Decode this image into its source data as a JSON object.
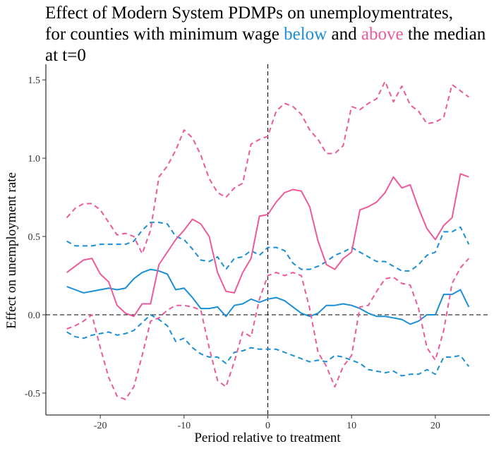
{
  "title": {
    "line1": "Effect of Modern System PDMPs on unemploymentrates,",
    "line2_prefix": "for counties with minimum wage ",
    "line2_below": "below",
    "line2_and": " and ",
    "line2_above": "above",
    "line2_suffix": " the median",
    "line3": "at t=0"
  },
  "colors": {
    "below": "#1b8fd6",
    "above": "#ec5a9b"
  },
  "chart_data": {
    "type": "line",
    "xlabel": "Period relative to treatment",
    "ylabel": "Effect on unemployment rate",
    "xlim": [
      -26.5,
      26.5
    ],
    "ylim": [
      -0.64,
      1.6
    ],
    "xticks": [
      -20,
      -10,
      0,
      10,
      20
    ],
    "xtick_labels": [
      "-20",
      "-10",
      "0",
      "10",
      "20"
    ],
    "yticks": [
      -0.5,
      0.0,
      0.5,
      1.0,
      1.5
    ],
    "ytick_labels": [
      "-0.5",
      "0.0",
      "0.5",
      "1.0",
      "1.5"
    ],
    "reference_lines": {
      "vertical_x": 0,
      "horizontal_y": 0
    },
    "grid": false,
    "legend": "none",
    "x": [
      -24,
      -23,
      -22,
      -21,
      -20,
      -19,
      -18,
      -17,
      -16,
      -15,
      -14,
      -13,
      -12,
      -11,
      -10,
      -9,
      -8,
      -7,
      -6,
      -5,
      -4,
      -3,
      -2,
      -1,
      0,
      1,
      2,
      3,
      4,
      5,
      6,
      7,
      8,
      9,
      10,
      11,
      12,
      13,
      14,
      15,
      16,
      17,
      18,
      19,
      20,
      21,
      22,
      23,
      24
    ],
    "series": [
      {
        "group": "below",
        "style": "solid",
        "values": [
          0.18,
          0.16,
          0.14,
          0.15,
          0.16,
          0.17,
          0.16,
          0.17,
          0.23,
          0.27,
          0.29,
          0.28,
          0.26,
          0.16,
          0.17,
          0.11,
          0.04,
          0.04,
          0.05,
          -0.01,
          0.06,
          0.07,
          0.1,
          0.08,
          0.1,
          0.11,
          0.09,
          0.05,
          0.01,
          -0.01,
          0.01,
          0.06,
          0.06,
          0.07,
          0.06,
          0.04,
          0.01,
          -0.01,
          -0.01,
          -0.02,
          -0.03,
          -0.06,
          -0.04,
          0.0,
          0.0,
          0.13,
          0.13,
          0.16,
          0.05
        ]
      },
      {
        "group": "below",
        "style": "dashed",
        "values": [
          0.47,
          0.44,
          0.44,
          0.44,
          0.45,
          0.45,
          0.45,
          0.45,
          0.47,
          0.54,
          0.59,
          0.59,
          0.58,
          0.5,
          0.48,
          0.42,
          0.35,
          0.34,
          0.37,
          0.29,
          0.36,
          0.37,
          0.41,
          0.38,
          0.43,
          0.43,
          0.41,
          0.33,
          0.29,
          0.29,
          0.31,
          0.34,
          0.38,
          0.4,
          0.43,
          0.4,
          0.37,
          0.34,
          0.34,
          0.31,
          0.28,
          0.28,
          0.32,
          0.38,
          0.4,
          0.53,
          0.53,
          0.56,
          0.45
        ]
      },
      {
        "group": "below",
        "style": "dashed",
        "values": [
          -0.11,
          -0.14,
          -0.15,
          -0.13,
          -0.12,
          -0.11,
          -0.13,
          -0.12,
          -0.1,
          -0.05,
          0.0,
          -0.03,
          -0.07,
          -0.17,
          -0.15,
          -0.21,
          -0.25,
          -0.27,
          -0.27,
          -0.31,
          -0.24,
          -0.23,
          -0.21,
          -0.22,
          -0.22,
          -0.22,
          -0.24,
          -0.26,
          -0.28,
          -0.3,
          -0.29,
          -0.3,
          -0.26,
          -0.27,
          -0.29,
          -0.31,
          -0.35,
          -0.36,
          -0.37,
          -0.36,
          -0.39,
          -0.38,
          -0.38,
          -0.35,
          -0.38,
          -0.27,
          -0.27,
          -0.26,
          -0.33
        ]
      },
      {
        "group": "above",
        "style": "solid",
        "values": [
          0.27,
          0.31,
          0.35,
          0.36,
          0.26,
          0.21,
          0.06,
          0.01,
          -0.01,
          0.07,
          0.07,
          0.32,
          0.4,
          0.48,
          0.54,
          0.61,
          0.58,
          0.5,
          0.27,
          0.15,
          0.14,
          0.27,
          0.36,
          0.63,
          0.64,
          0.72,
          0.78,
          0.8,
          0.79,
          0.69,
          0.47,
          0.32,
          0.29,
          0.36,
          0.4,
          0.67,
          0.69,
          0.72,
          0.78,
          0.88,
          0.81,
          0.83,
          0.68,
          0.55,
          0.48,
          0.57,
          0.62,
          0.9,
          0.88
        ]
      },
      {
        "group": "above",
        "style": "dashed",
        "values": [
          0.62,
          0.68,
          0.71,
          0.71,
          0.67,
          0.59,
          0.51,
          0.52,
          0.5,
          0.39,
          0.54,
          0.88,
          0.95,
          1.05,
          1.18,
          1.13,
          1.02,
          0.87,
          0.78,
          0.75,
          0.81,
          0.84,
          1.09,
          1.12,
          1.14,
          1.3,
          1.35,
          1.33,
          1.28,
          1.18,
          1.12,
          1.03,
          1.03,
          1.08,
          1.33,
          1.31,
          1.35,
          1.38,
          1.49,
          1.36,
          1.46,
          1.34,
          1.3,
          1.22,
          1.23,
          1.26,
          1.47,
          1.43,
          1.39
        ]
      },
      {
        "group": "above",
        "style": "dashed",
        "values": [
          -0.09,
          -0.07,
          -0.04,
          0.0,
          -0.21,
          -0.4,
          -0.52,
          -0.54,
          -0.46,
          -0.26,
          -0.04,
          -0.02,
          0.03,
          0.06,
          0.06,
          0.05,
          0.03,
          -0.21,
          -0.42,
          -0.46,
          -0.3,
          -0.11,
          -0.14,
          0.1,
          0.25,
          0.27,
          0.25,
          0.27,
          0.25,
          0.04,
          -0.24,
          -0.33,
          -0.46,
          -0.33,
          -0.26,
          0.05,
          0.06,
          0.15,
          0.23,
          0.24,
          0.2,
          0.19,
          0.04,
          -0.21,
          -0.29,
          -0.1,
          0.2,
          0.3,
          0.36
        ]
      }
    ]
  }
}
